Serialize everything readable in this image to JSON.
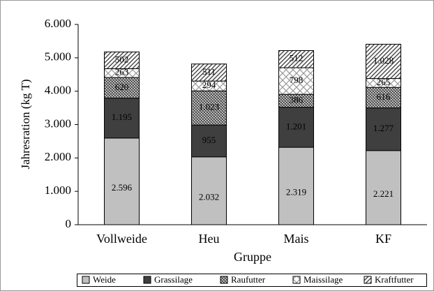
{
  "chart_data": {
    "type": "stacked_bar",
    "categories": [
      "Vollweide",
      "Heu",
      "Mais",
      "KF"
    ],
    "x_label": "Gruppe",
    "y_label": "Jahresration (kg T)",
    "ylim": [
      0,
      6000
    ],
    "yticks": [
      0,
      {
        "value": 1000,
        "label": "1.000"
      },
      {
        "value": 2000,
        "label": "2.000"
      },
      {
        "value": 3000,
        "label": "3.000"
      },
      {
        "value": 4000,
        "label": "4.000"
      },
      {
        "value": 5000,
        "label": "5.000"
      },
      {
        "value": 6000,
        "label": "6.000"
      }
    ],
    "legend": "bottom",
    "series": [
      {
        "name": "Weide",
        "color": "#c0c0c0",
        "pattern": "solid",
        "values": [
          2596,
          2032,
          2319,
          2221
        ],
        "value_labels": [
          "2.596",
          "2.032",
          "2.319",
          "2.221"
        ]
      },
      {
        "name": "Grassilage",
        "color": "#3f3f3f",
        "pattern": "solid",
        "values": [
          1195,
          955,
          1201,
          1277
        ],
        "value_labels": [
          "1.195",
          "955",
          "1.201",
          "1.277"
        ]
      },
      {
        "name": "Raufutter",
        "color": "#808080",
        "pattern": "dots",
        "values": [
          620,
          1023,
          386,
          616
        ],
        "value_labels": [
          "620",
          "1.023",
          "386",
          "616"
        ]
      },
      {
        "name": "Maissilage",
        "color": "#ffffff",
        "pattern": "cross",
        "values": [
          263,
          294,
          798,
          265
        ],
        "value_labels": [
          "263",
          "294",
          "798",
          "265"
        ]
      },
      {
        "name": "Kraftfutter",
        "color": "#ffffff",
        "pattern": "diagonal",
        "values": [
          502,
          511,
          512,
          1028
        ],
        "value_labels": [
          "502",
          "511",
          "512",
          "1.028"
        ]
      }
    ]
  }
}
